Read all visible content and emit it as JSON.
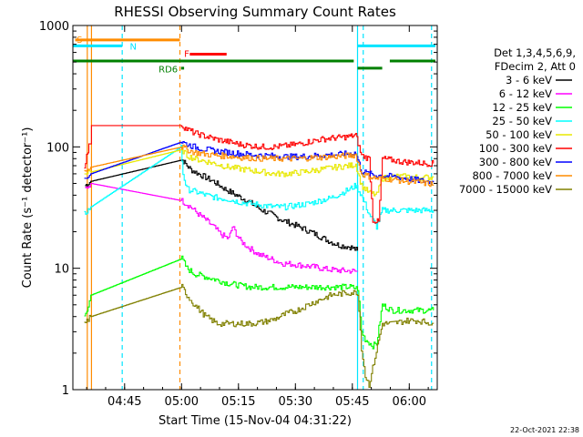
{
  "chart_data": {
    "type": "line",
    "title": "RHESSI Observing Summary Count Rates",
    "xlabel": "Start Time (15-Nov-04 04:31:22)",
    "ylabel": "Count Rate (s⁻¹ detector⁻¹)",
    "y_scale": "log",
    "ylim": [
      1,
      1000
    ],
    "xlim_minutes": [
      0,
      96
    ],
    "x_ticks": [
      {
        "label": "04:45",
        "minute": 13.63
      },
      {
        "label": "05:00",
        "minute": 28.63
      },
      {
        "label": "05:15",
        "minute": 43.63
      },
      {
        "label": "05:30",
        "minute": 58.63
      },
      {
        "label": "05:45",
        "minute": 73.63
      },
      {
        "label": "06:00",
        "minute": 88.63
      }
    ],
    "y_ticks": [
      {
        "label": "1",
        "value": 1
      },
      {
        "label": "10",
        "value": 10
      },
      {
        "label": "100",
        "value": 100
      },
      {
        "label": "1000",
        "value": 1000
      }
    ],
    "legend_placement": "right",
    "legend_header": [
      "Det 1,3,4,5,6,9,",
      "FDecim 2, Att 0"
    ],
    "series": [
      {
        "name": "3 - 6 keV",
        "color": "#000000",
        "points": [
          [
            3.2,
            48
          ],
          [
            4.7,
            52
          ],
          [
            28.7,
            78
          ],
          [
            31,
            65
          ],
          [
            34,
            58
          ],
          [
            37,
            52
          ],
          [
            40,
            45
          ],
          [
            43,
            40
          ],
          [
            46,
            36
          ],
          [
            49,
            31
          ],
          [
            52,
            28
          ],
          [
            55,
            25
          ],
          [
            58,
            23
          ],
          [
            61,
            21
          ],
          [
            64,
            19
          ],
          [
            67,
            17
          ],
          [
            70,
            15.5
          ],
          [
            73,
            15
          ],
          [
            75,
            14
          ]
        ]
      },
      {
        "name": "6 - 12 keV",
        "color": "#ff00ff",
        "points": [
          [
            3.2,
            45
          ],
          [
            4.7,
            50
          ],
          [
            28.7,
            36
          ],
          [
            31,
            32
          ],
          [
            33,
            28
          ],
          [
            35,
            25
          ],
          [
            37,
            22
          ],
          [
            39,
            19
          ],
          [
            41,
            17.5
          ],
          [
            42,
            22
          ],
          [
            44,
            17
          ],
          [
            46,
            15
          ],
          [
            49,
            13
          ],
          [
            52,
            12
          ],
          [
            55,
            11
          ],
          [
            58,
            10.8
          ],
          [
            61,
            10.5
          ],
          [
            64,
            10.2
          ],
          [
            67,
            9.8
          ],
          [
            70,
            9.6
          ],
          [
            73,
            9.5
          ],
          [
            75,
            9.4
          ]
        ]
      },
      {
        "name": "12 - 25 keV",
        "color": "#00ff00",
        "points": [
          [
            3,
            4
          ],
          [
            4,
            5
          ],
          [
            4.7,
            6
          ],
          [
            28.7,
            12
          ],
          [
            30,
            10
          ],
          [
            32,
            9
          ],
          [
            35,
            8.5
          ],
          [
            38,
            8
          ],
          [
            41,
            7.5
          ],
          [
            44,
            7.2
          ],
          [
            47,
            7
          ],
          [
            50,
            7
          ],
          [
            53,
            7
          ],
          [
            56,
            7
          ],
          [
            59,
            7
          ],
          [
            62,
            7
          ],
          [
            65,
            7
          ],
          [
            68,
            7
          ],
          [
            71,
            7
          ],
          [
            73,
            7
          ],
          [
            75,
            6.8
          ],
          [
            76,
            3
          ],
          [
            77,
            2.6
          ],
          [
            79,
            2.3
          ],
          [
            80,
            2.4
          ],
          [
            81.5,
            5
          ],
          [
            84,
            4.5
          ],
          [
            86,
            4.5
          ],
          [
            88,
            4.5
          ],
          [
            91,
            4.5
          ],
          [
            93,
            4.5
          ],
          [
            95,
            4.5
          ]
        ]
      },
      {
        "name": "25 - 50 keV",
        "color": "#00ffff",
        "points": [
          [
            3,
            28
          ],
          [
            4.7,
            32
          ],
          [
            28.5,
            100
          ],
          [
            29,
            60
          ],
          [
            30,
            45
          ],
          [
            32,
            43
          ],
          [
            35,
            40
          ],
          [
            38,
            38
          ],
          [
            41,
            37
          ],
          [
            44,
            35
          ],
          [
            47,
            34
          ],
          [
            50,
            33
          ],
          [
            53,
            32
          ],
          [
            56,
            32
          ],
          [
            59,
            33
          ],
          [
            62,
            34
          ],
          [
            65,
            36
          ],
          [
            68,
            38
          ],
          [
            71,
            42
          ],
          [
            73,
            45
          ],
          [
            74.5,
            48
          ],
          [
            76,
            40
          ],
          [
            78,
            28
          ],
          [
            80,
            22
          ],
          [
            81.5,
            30
          ],
          [
            84,
            30
          ],
          [
            86,
            30
          ],
          [
            88,
            30
          ],
          [
            91,
            30
          ],
          [
            93,
            30
          ],
          [
            95,
            30
          ]
        ]
      },
      {
        "name": "50 - 100 keV",
        "color": "#e8e800",
        "points": [
          [
            3,
            60
          ],
          [
            4.7,
            62
          ],
          [
            28.7,
            95
          ],
          [
            30,
            85
          ],
          [
            32,
            80
          ],
          [
            35,
            76
          ],
          [
            38,
            72
          ],
          [
            41,
            68
          ],
          [
            44,
            66
          ],
          [
            47,
            64
          ],
          [
            50,
            62
          ],
          [
            53,
            60
          ],
          [
            56,
            60
          ],
          [
            59,
            61
          ],
          [
            62,
            63
          ],
          [
            65,
            65
          ],
          [
            68,
            67
          ],
          [
            71,
            69
          ],
          [
            73,
            70
          ],
          [
            74.5,
            72
          ],
          [
            76,
            48
          ],
          [
            78,
            42
          ],
          [
            80,
            40
          ],
          [
            81.5,
            55
          ],
          [
            84,
            57
          ],
          [
            86,
            57
          ],
          [
            88,
            57
          ],
          [
            91,
            56
          ],
          [
            93,
            56
          ],
          [
            95,
            56
          ]
        ]
      },
      {
        "name": "100 - 300 keV",
        "color": "#ff0000",
        "points": [
          [
            3,
            70
          ],
          [
            4.5,
            110
          ],
          [
            4.9,
            150
          ],
          [
            28.7,
            150
          ],
          [
            30,
            140
          ],
          [
            32,
            130
          ],
          [
            35,
            122
          ],
          [
            38,
            115
          ],
          [
            41,
            110
          ],
          [
            44,
            105
          ],
          [
            47,
            102
          ],
          [
            50,
            100
          ],
          [
            53,
            100
          ],
          [
            56,
            102
          ],
          [
            59,
            105
          ],
          [
            62,
            110
          ],
          [
            65,
            115
          ],
          [
            68,
            118
          ],
          [
            71,
            120
          ],
          [
            73,
            122
          ],
          [
            74.5,
            125
          ],
          [
            76,
            85
          ],
          [
            78,
            80
          ],
          [
            79,
            25
          ],
          [
            80.5,
            24
          ],
          [
            81.5,
            80
          ],
          [
            84,
            78
          ],
          [
            86,
            76
          ],
          [
            88,
            75
          ],
          [
            91,
            74
          ],
          [
            93,
            73
          ],
          [
            95,
            73
          ]
        ]
      },
      {
        "name": "300 - 800 keV",
        "color": "#0000ff",
        "points": [
          [
            3,
            55
          ],
          [
            4.7,
            60
          ],
          [
            28.7,
            110
          ],
          [
            30,
            105
          ],
          [
            32,
            100
          ],
          [
            35,
            95
          ],
          [
            38,
            92
          ],
          [
            41,
            90
          ],
          [
            44,
            88
          ],
          [
            47,
            86
          ],
          [
            50,
            85
          ],
          [
            53,
            84
          ],
          [
            56,
            83
          ],
          [
            59,
            83
          ],
          [
            62,
            84
          ],
          [
            65,
            85
          ],
          [
            68,
            86
          ],
          [
            71,
            87
          ],
          [
            73,
            88
          ],
          [
            74.5,
            89
          ],
          [
            76,
            63
          ],
          [
            78,
            60
          ],
          [
            80,
            58
          ],
          [
            81.5,
            58
          ],
          [
            84,
            57
          ],
          [
            86,
            56
          ],
          [
            88,
            55
          ],
          [
            91,
            53
          ],
          [
            93,
            52
          ],
          [
            95,
            51
          ]
        ]
      },
      {
        "name": "800 - 7000 keV",
        "color": "#ff8c00",
        "points": [
          [
            3,
            65
          ],
          [
            4.7,
            68
          ],
          [
            28.7,
            100
          ],
          [
            30,
            95
          ],
          [
            32,
            90
          ],
          [
            35,
            87
          ],
          [
            38,
            85
          ],
          [
            41,
            84
          ],
          [
            44,
            82
          ],
          [
            47,
            81
          ],
          [
            50,
            80
          ],
          [
            53,
            80
          ],
          [
            56,
            80
          ],
          [
            59,
            80
          ],
          [
            62,
            81
          ],
          [
            65,
            82
          ],
          [
            68,
            83
          ],
          [
            71,
            84
          ],
          [
            73,
            85
          ],
          [
            74.5,
            86
          ],
          [
            76,
            60
          ],
          [
            78,
            57
          ],
          [
            80,
            55
          ],
          [
            81.5,
            55
          ],
          [
            84,
            54
          ],
          [
            86,
            53
          ],
          [
            88,
            52
          ],
          [
            91,
            51
          ],
          [
            93,
            50
          ],
          [
            95,
            49
          ]
        ]
      },
      {
        "name": "7000 - 15000 keV",
        "color": "#808000",
        "points": [
          [
            3,
            3.5
          ],
          [
            4.7,
            4
          ],
          [
            28.7,
            7
          ],
          [
            30,
            6
          ],
          [
            32,
            5
          ],
          [
            35,
            4
          ],
          [
            38,
            3.5
          ],
          [
            41,
            3.5
          ],
          [
            44,
            3.5
          ],
          [
            47,
            3.5
          ],
          [
            50,
            3.6
          ],
          [
            53,
            3.8
          ],
          [
            56,
            4.2
          ],
          [
            59,
            4.5
          ],
          [
            62,
            5
          ],
          [
            65,
            5.5
          ],
          [
            68,
            6
          ],
          [
            71,
            6.2
          ],
          [
            73,
            6.3
          ],
          [
            75,
            6.3
          ],
          [
            76,
            2.2
          ],
          [
            77,
            1.3
          ],
          [
            78,
            1.1
          ],
          [
            81.5,
            3.5
          ],
          [
            84,
            3.5
          ],
          [
            86,
            3.6
          ],
          [
            88,
            3.7
          ],
          [
            91,
            3.7
          ],
          [
            93,
            3.6
          ],
          [
            95,
            3.5
          ]
        ]
      }
    ],
    "annotations": {
      "vertical_lines": [
        {
          "minute": 3.8,
          "color": "#ff8c00",
          "style": "solid"
        },
        {
          "minute": 4.9,
          "color": "#ff8c00",
          "style": "solid"
        },
        {
          "minute": 13.0,
          "color": "#00e5ff",
          "style": "dashed"
        },
        {
          "minute": 28.2,
          "color": "#ff8c00",
          "style": "dashed"
        },
        {
          "minute": 75.0,
          "color": "#00e5ff",
          "style": "solid"
        },
        {
          "minute": 76.5,
          "color": "#00e5ff",
          "style": "dashed"
        },
        {
          "minute": 94.5,
          "color": "#00e5ff",
          "style": "dashed"
        }
      ],
      "flag_bars": [
        {
          "label": "S",
          "color": "#ff8c00",
          "from": 0.6,
          "to": 28.2,
          "value": 760
        },
        {
          "label": "N",
          "color": "#00e5ff",
          "from": 0,
          "to": 13.0,
          "value": 680
        },
        {
          "label": "N",
          "color": "#00e5ff",
          "from": 75.0,
          "to": 95.5,
          "value": 680
        },
        {
          "label": "F",
          "color": "#ff0000",
          "from": 30.8,
          "to": 40.5,
          "value": 580
        },
        {
          "label": "RD6",
          "color": "#008000",
          "from": 0,
          "to": 74.0,
          "value": 510
        },
        {
          "label": "",
          "color": "#008000",
          "from": 75.0,
          "to": 81.5,
          "value": 445
        },
        {
          "label": "",
          "color": "#008000",
          "from": 83.5,
          "to": 95.5,
          "value": 510
        },
        {
          "label": "",
          "color": "#008000",
          "from": 28.5,
          "to": 29.3,
          "value": 445
        }
      ],
      "flag_labels": [
        {
          "text": "S",
          "color": "#ff8c00",
          "minute": 1.0,
          "value": 770
        },
        {
          "text": "N",
          "color": "#00e5ff",
          "minute": 15.0,
          "value": 680
        },
        {
          "text": "F",
          "color": "#ff0000",
          "minute": 29.3,
          "value": 590
        },
        {
          "text": "RD6",
          "color": "#008000",
          "minute": 22.6,
          "value": 440
        }
      ]
    }
  },
  "footer": {
    "timestamp": "22-Oct-2021 22:38"
  }
}
